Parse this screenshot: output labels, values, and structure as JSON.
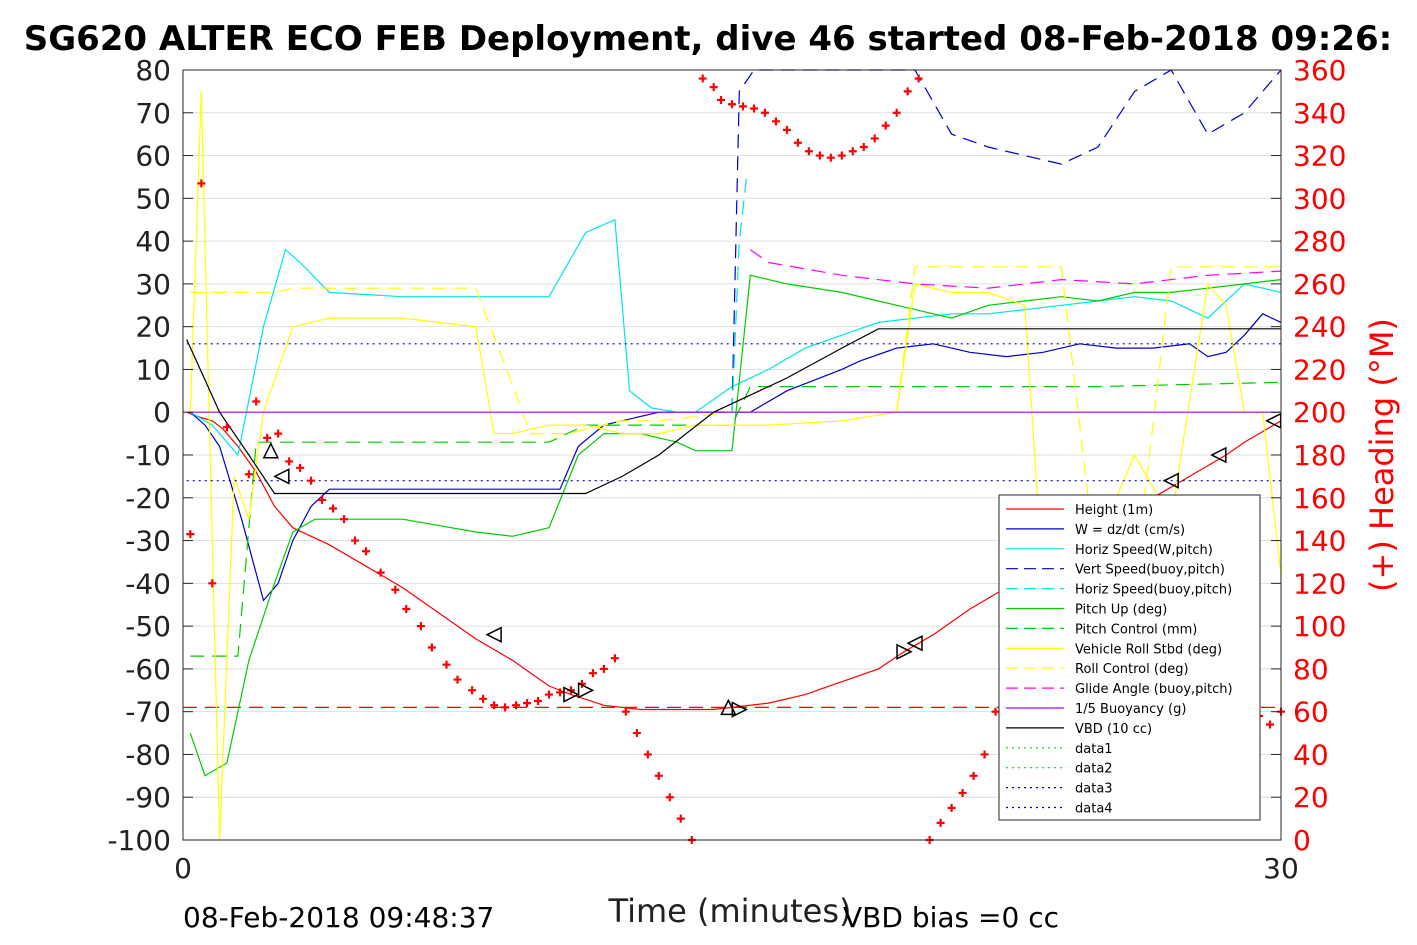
{
  "chart_data": {
    "type": "line",
    "title": "SG620 ALTER ECO FEB Deployment, dive 46 started 08-Feb-2018 09:26:",
    "xlabel": "Time (minutes)",
    "ylabel_right": "(+) Heading (°M)",
    "footer_left": "08-Feb-2018 09:48:37",
    "footer_right": "VBD bias =0 cc",
    "xlim": [
      0,
      30
    ],
    "ylim": [
      -100,
      80
    ],
    "ylim_right": [
      0,
      360
    ],
    "x_ticks": [
      "0",
      "30"
    ],
    "y_ticks": [
      "80",
      "70",
      "60",
      "50",
      "40",
      "30",
      "20",
      "10",
      "0",
      "-10",
      "-20",
      "-30",
      "-40",
      "-50",
      "-60",
      "-70",
      "-80",
      "-90",
      "-100"
    ],
    "y_ticks_right": [
      "360",
      "340",
      "320",
      "300",
      "280",
      "260",
      "240",
      "220",
      "200",
      "180",
      "160",
      "140",
      "120",
      "100",
      "80",
      "60",
      "40",
      "20",
      "0"
    ],
    "grid": "horizontal",
    "legend_position": "lower-right",
    "series": [
      {
        "name": "Height (1m)",
        "color": "#ff0000",
        "style": "solid",
        "x": [
          0.1,
          0.4,
          0.8,
          1.1,
          1.5,
          2.0,
          2.5,
          3.0,
          4.0,
          5.0,
          6.0,
          7.0,
          8.0,
          9.0,
          10.0,
          10.6,
          11.5,
          12.5,
          13.5,
          14.5,
          15.0,
          16.0,
          17.0,
          18.0,
          19.0,
          19.7,
          20.5,
          21.5,
          22.5,
          23.5,
          24.5,
          25.5,
          26.5,
          27.5,
          28.5,
          29.0,
          30.0
        ],
        "y": [
          0,
          -1,
          -2,
          -4,
          -8,
          -14,
          -22,
          -27,
          -31,
          -36,
          -41,
          -47,
          -53,
          -58,
          -64,
          -66,
          -68.5,
          -69.5,
          -69.5,
          -69.5,
          -69,
          -68,
          -66,
          -63,
          -60,
          -56,
          -52,
          -46,
          -41,
          -36,
          -31,
          -25,
          -20,
          -15,
          -10,
          -7,
          -2
        ]
      },
      {
        "name": "W = dz/dt (cm/s)",
        "color": "#0000cc",
        "style": "solid",
        "x": [
          0.2,
          0.6,
          1.0,
          1.6,
          2.2,
          2.6,
          3.0,
          3.5,
          4.0,
          5.0,
          7.0,
          9.0,
          10.3,
          10.8,
          11.5,
          13,
          14,
          15,
          15.5,
          16.5,
          18,
          18.5,
          19.5,
          20.5,
          21.5,
          22.5,
          23.5,
          24.5,
          25.5,
          26.5,
          27.5,
          28.0,
          28.5,
          29.0,
          29.5,
          30.0
        ],
        "y": [
          0,
          -3,
          -8,
          -25,
          -44,
          -40,
          -30,
          -22,
          -18,
          -18,
          -18,
          -18,
          -18,
          -8,
          -3,
          0,
          0,
          0,
          0,
          5,
          10,
          12,
          15,
          16,
          14,
          13,
          14,
          16,
          15,
          15,
          16,
          13,
          14,
          18,
          23,
          21
        ]
      },
      {
        "name": "Horiz Speed(W,pitch)",
        "color": "#00e5e5",
        "style": "solid",
        "x": [
          0.2,
          0.8,
          1.5,
          2.2,
          2.8,
          3.2,
          4.0,
          6.0,
          8.0,
          10.0,
          11.0,
          11.8,
          12.2,
          12.8,
          13.5,
          14.0,
          15.0,
          16.0,
          17.0,
          18.0,
          19.0,
          20.0,
          21.0,
          22.0,
          23.0,
          24.0,
          25.0,
          26.0,
          27.0,
          28.0,
          29.0,
          30.0
        ],
        "y": [
          0,
          -3,
          -10,
          20,
          38,
          35,
          28,
          27,
          27,
          27,
          42,
          45,
          5,
          1,
          0,
          0,
          6,
          10,
          15,
          18,
          21,
          22,
          23,
          23,
          24,
          25,
          26,
          27,
          26,
          22,
          30,
          28
        ]
      },
      {
        "name": "Vert Speed(buoy,pitch)",
        "color": "#0000cc",
        "style": "dashed",
        "x": [
          15.0,
          15.2,
          15.6,
          18.0,
          20.0,
          21.0,
          22.0,
          23.0,
          24.0,
          25.0,
          26.0,
          27.0,
          28.0,
          29.0,
          30.0
        ],
        "y": [
          0,
          75,
          80,
          80,
          80,
          65,
          62,
          60,
          58,
          62,
          75,
          80,
          65,
          70,
          80
        ]
      },
      {
        "name": "Horiz Speed(buoy,pitch)",
        "color": "#00e5e5",
        "style": "dashed",
        "x": [
          15.0,
          15.2,
          15.4
        ],
        "y": [
          0,
          40,
          55
        ]
      },
      {
        "name": "Pitch Up (deg)",
        "color": "#00cc00",
        "style": "solid",
        "x": [
          0.2,
          0.6,
          1.2,
          1.8,
          2.5,
          3.0,
          3.6,
          4.5,
          6.0,
          8.0,
          9.0,
          10.0,
          10.8,
          11.5,
          12.5,
          13.5,
          14.0,
          15.0,
          15.5,
          16.5,
          18.0,
          19.0,
          20.0,
          21.0,
          22.0,
          23.0,
          24.0,
          25.0,
          26.0,
          27.0,
          28.0,
          29.0,
          30.0
        ],
        "y": [
          -75,
          -85,
          -82,
          -58,
          -40,
          -28,
          -25,
          -25,
          -25,
          -28,
          -29,
          -27,
          -10,
          -5,
          -5,
          -7,
          -9,
          -9,
          32,
          30,
          28,
          26,
          24,
          22,
          25,
          26,
          27,
          26,
          28,
          28,
          29,
          30,
          31
        ]
      },
      {
        "name": "Pitch Control (mm)",
        "color": "#00cc00",
        "style": "dashed",
        "x": [
          0.2,
          1.5,
          2.0,
          2.6,
          3.0,
          8.0,
          10.0,
          11.0,
          12.0,
          15.0,
          15.5,
          20.0,
          25.0,
          30.0
        ],
        "y": [
          -57,
          -57,
          -7,
          -7,
          -7,
          -7,
          -7,
          -3,
          -3,
          -3,
          6,
          6,
          6,
          7
        ]
      },
      {
        "name": "Vehicle Roll Stbd (deg)",
        "color": "#ffff00",
        "style": "solid",
        "x": [
          0.2,
          0.5,
          0.7,
          1.0,
          1.4,
          1.8,
          2.2,
          3.0,
          4.0,
          6.0,
          8.0,
          8.5,
          9.0,
          10.0,
          11.0,
          12.0,
          13.0,
          14.0,
          15.0,
          16.0,
          18.0,
          19.5,
          20.0,
          21.0,
          22.0,
          23.0,
          23.5,
          24.0,
          25.0,
          26.0,
          27.0,
          28.0,
          28.5,
          29.0,
          29.5,
          30.0
        ],
        "y": [
          0,
          75,
          5,
          -100,
          -15,
          -25,
          0,
          20,
          22,
          22,
          20,
          -5,
          -5,
          -3,
          -3,
          -5,
          -5,
          -3,
          -3,
          -3,
          -2,
          0,
          30,
          28,
          28,
          25,
          -40,
          -45,
          -30,
          -10,
          -25,
          30,
          25,
          0,
          0,
          -38
        ]
      },
      {
        "name": "Roll Control (deg)",
        "color": "#ffff00",
        "style": "dashed",
        "x": [
          0.2,
          1.5,
          2.5,
          3.0,
          8.0,
          9.5,
          10.5,
          12.0,
          13.0,
          15.0,
          16.0,
          19.5,
          20.0,
          24.0,
          25.0,
          26.0,
          27.0,
          28.0,
          30.0
        ],
        "y": [
          28,
          28,
          28,
          29,
          29,
          -5,
          -5,
          -2,
          -2,
          0,
          0,
          0,
          34,
          34,
          -40,
          -40,
          34,
          34,
          34
        ]
      },
      {
        "name": "Glide Angle (buoy,pitch)",
        "color": "#ff00ff",
        "style": "dashed",
        "x": [
          15.5,
          16.0,
          18.0,
          20.0,
          22.0,
          24.0,
          26.0,
          28.0,
          30.0
        ],
        "y": [
          38,
          35,
          32,
          30,
          29,
          31,
          30,
          32,
          33
        ]
      },
      {
        "name": "1/5 Buoyancy (g)",
        "color": "#aa00ff",
        "style": "solid",
        "x": [
          0.1,
          6.0,
          12.0,
          15.0,
          30.0
        ],
        "y": [
          0,
          0,
          0,
          0,
          0
        ]
      },
      {
        "name": "VBD (10 cc)",
        "color": "#000000",
        "style": "solid",
        "x": [
          0.1,
          1.0,
          1.8,
          2.5,
          4.0,
          6.0,
          8.0,
          10.0,
          11.0,
          12.0,
          13.0,
          14.5,
          15.5,
          16.5,
          18.0,
          19.0,
          19.5,
          20.0,
          24.0,
          28.0,
          30.0
        ],
        "y": [
          17,
          0,
          -10,
          -19,
          -19,
          -19,
          -19,
          -19,
          -19,
          -15,
          -10,
          0,
          4,
          8,
          15,
          19.5,
          19.5,
          19.5,
          19.5,
          19.5,
          19.5
        ]
      },
      {
        "name": "data1",
        "color": "#00dd00",
        "style": "dotted",
        "x": [],
        "y": []
      },
      {
        "name": "data2",
        "color": "#00dd00",
        "style": "dotted",
        "x": [],
        "y": []
      },
      {
        "name": "data3",
        "color": "#0000aa",
        "style": "dotted",
        "x": [
          0.1,
          30
        ],
        "y": [
          -16,
          -16
        ]
      },
      {
        "name": "data4",
        "color": "#0000aa",
        "style": "dotted",
        "x": [
          0.1,
          30
        ],
        "y": [
          16,
          16
        ]
      }
    ],
    "depth_ref_line": {
      "color": "#ff0000",
      "style": "dashed",
      "y": -69
    },
    "markers": {
      "x": [
        2.4,
        2.7,
        8.5,
        10.6,
        11.0,
        14.9,
        15.2,
        19.7,
        20.0,
        23.5,
        24.7,
        25.8,
        27.0,
        28.3,
        29.8
      ],
      "y": [
        -9,
        -15,
        -52,
        -66,
        -65,
        -69,
        -69.5,
        -56,
        -54,
        -36,
        -29,
        -23,
        -16,
        -10,
        -2
      ],
      "shapes": [
        "up",
        "left",
        "left",
        "right",
        "right",
        "up",
        "right",
        "right",
        "left",
        "left",
        "left",
        "left",
        "left",
        "left",
        "left"
      ]
    },
    "heading_points": {
      "color": "#ff0000",
      "x": [
        0.2,
        0.5,
        0.8,
        1.2,
        1.8,
        2.0,
        2.3,
        2.6,
        2.9,
        3.2,
        3.5,
        3.8,
        4.1,
        4.4,
        4.7,
        5.0,
        5.4,
        5.8,
        6.1,
        6.5,
        6.8,
        7.2,
        7.5,
        7.9,
        8.2,
        8.5,
        8.8,
        9.1,
        9.4,
        9.7,
        10.0,
        10.3,
        10.6,
        10.9,
        11.2,
        11.5,
        11.8,
        12.1,
        12.4,
        12.7,
        13.0,
        13.3,
        13.6,
        13.9,
        14.2,
        14.5,
        14.7,
        15.0,
        15.3,
        15.6,
        15.9,
        16.2,
        16.5,
        16.8,
        17.1,
        17.4,
        17.7,
        18.0,
        18.3,
        18.6,
        18.9,
        19.2,
        19.5,
        19.8,
        20.1,
        20.4,
        20.7,
        21.0,
        21.3,
        21.6,
        21.9,
        22.2,
        22.5,
        22.8,
        23.1,
        23.4,
        23.7,
        24.0,
        24.3,
        24.6,
        24.9,
        25.2,
        25.5,
        25.8,
        26.1,
        26.4,
        26.7,
        27.0,
        27.3,
        27.6,
        27.9,
        28.2,
        28.5,
        28.8,
        29.1,
        29.4,
        29.7,
        30.0
      ],
      "y": [
        143,
        307,
        120,
        193,
        171,
        205,
        188,
        190,
        177,
        174,
        168,
        159,
        155,
        150,
        140,
        135,
        125,
        117,
        108,
        100,
        90,
        82,
        75,
        70,
        66,
        63,
        62,
        63,
        64,
        65,
        68,
        69,
        70,
        73,
        78,
        80,
        85,
        60,
        50,
        40,
        30,
        20,
        10,
        0,
        356,
        352,
        346,
        344,
        343,
        342,
        340,
        336,
        332,
        326,
        322,
        320,
        319,
        320,
        322,
        324,
        328,
        334,
        340,
        350,
        356,
        0,
        8,
        15,
        22,
        30,
        40,
        60,
        76,
        88,
        95,
        86,
        70,
        60,
        50,
        44,
        40,
        39,
        38,
        38,
        41,
        46,
        50,
        54,
        60,
        70,
        76,
        72,
        68,
        65,
        63,
        58,
        54,
        60
      ]
    }
  }
}
